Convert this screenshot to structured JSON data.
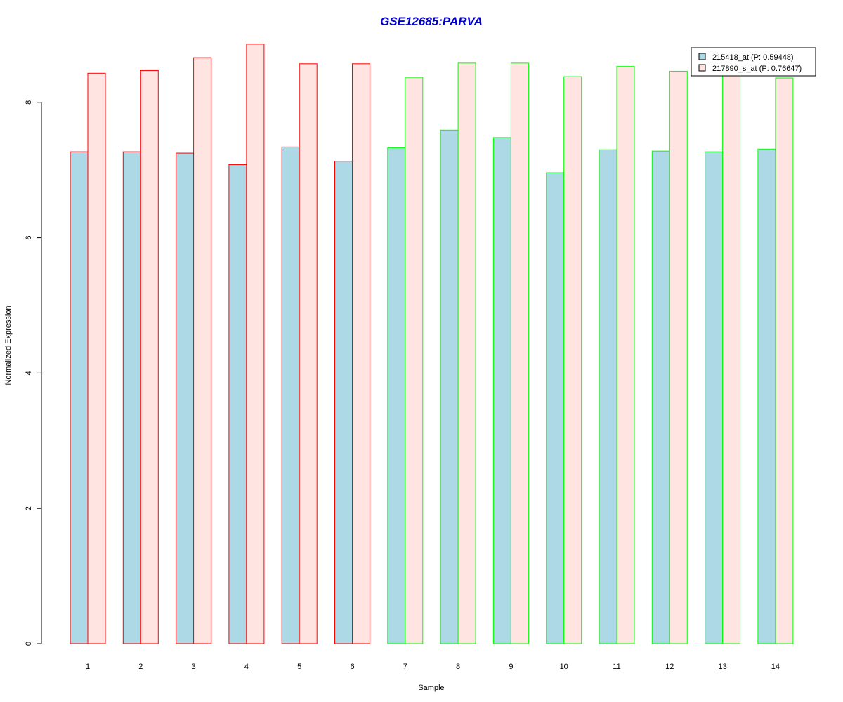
{
  "chart_data": {
    "type": "bar",
    "title": "GSE12685:PARVA",
    "xlabel": "Sample",
    "ylabel": "Normalized Expression",
    "ylim": [
      0,
      8.9
    ],
    "yticks": [
      0,
      2,
      4,
      6,
      8
    ],
    "categories": [
      "1",
      "2",
      "3",
      "4",
      "5",
      "6",
      "7",
      "8",
      "9",
      "10",
      "11",
      "12",
      "13",
      "14"
    ],
    "group_border_colors": [
      "#ff0000",
      "#ff0000",
      "#ff0000",
      "#ff0000",
      "#ff0000",
      "#ff0000",
      "#00ff00",
      "#00ff00",
      "#00ff00",
      "#00ff00",
      "#00ff00",
      "#00ff00",
      "#00ff00",
      "#00ff00"
    ],
    "series": [
      {
        "name": "215418_at (P: 0.59448)",
        "fill": "#add8e6",
        "values": [
          7.27,
          7.27,
          7.25,
          7.08,
          7.34,
          7.13,
          7.33,
          7.59,
          7.48,
          6.96,
          7.3,
          7.28,
          7.27,
          7.31
        ]
      },
      {
        "name": "217890_s_at (P: 0.76647)",
        "fill": "#ffe4e1",
        "values": [
          8.43,
          8.47,
          8.66,
          8.86,
          8.57,
          8.57,
          8.37,
          8.58,
          8.58,
          8.38,
          8.53,
          8.46,
          8.42,
          8.36
        ]
      }
    ],
    "legend_position": "top-right",
    "title_color": "#0000cc",
    "grid": false
  }
}
